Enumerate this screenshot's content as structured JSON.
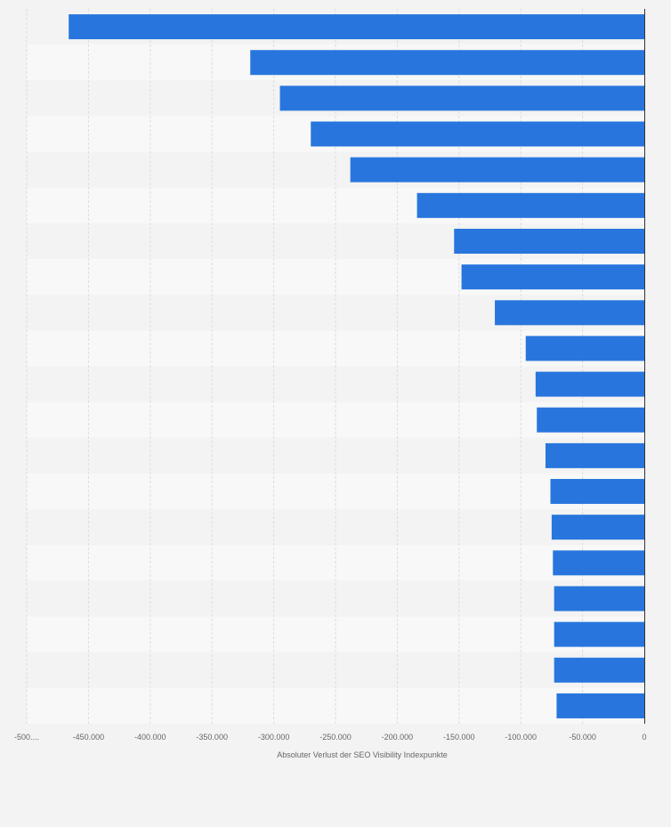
{
  "chart_data": {
    "type": "bar",
    "orientation": "horizontal",
    "xlabel": "Absoluter Verlust der SEO Visibility Indexpunkte",
    "xlim": [
      -500000,
      0
    ],
    "x_ticks": [
      "-500....",
      "-450.000",
      "-400.000",
      "-350.000",
      "-300.000",
      "-250.000",
      "-200.000",
      "-150.000",
      "-100.000",
      "-50.000",
      "0"
    ],
    "x_tick_values": [
      -500000,
      -450000,
      -400000,
      -350000,
      -300000,
      -250000,
      -200000,
      -150000,
      -100000,
      -50000,
      0
    ],
    "grid": true,
    "bar_color": "#2876dd",
    "values": [
      -466000,
      -319000,
      -295000,
      -270000,
      -238000,
      -184000,
      -154000,
      -148000,
      -121000,
      -96000,
      -88000,
      -87000,
      -80000,
      -76000,
      -75000,
      -74000,
      -73000,
      -73000,
      -73000,
      -71000
    ]
  }
}
